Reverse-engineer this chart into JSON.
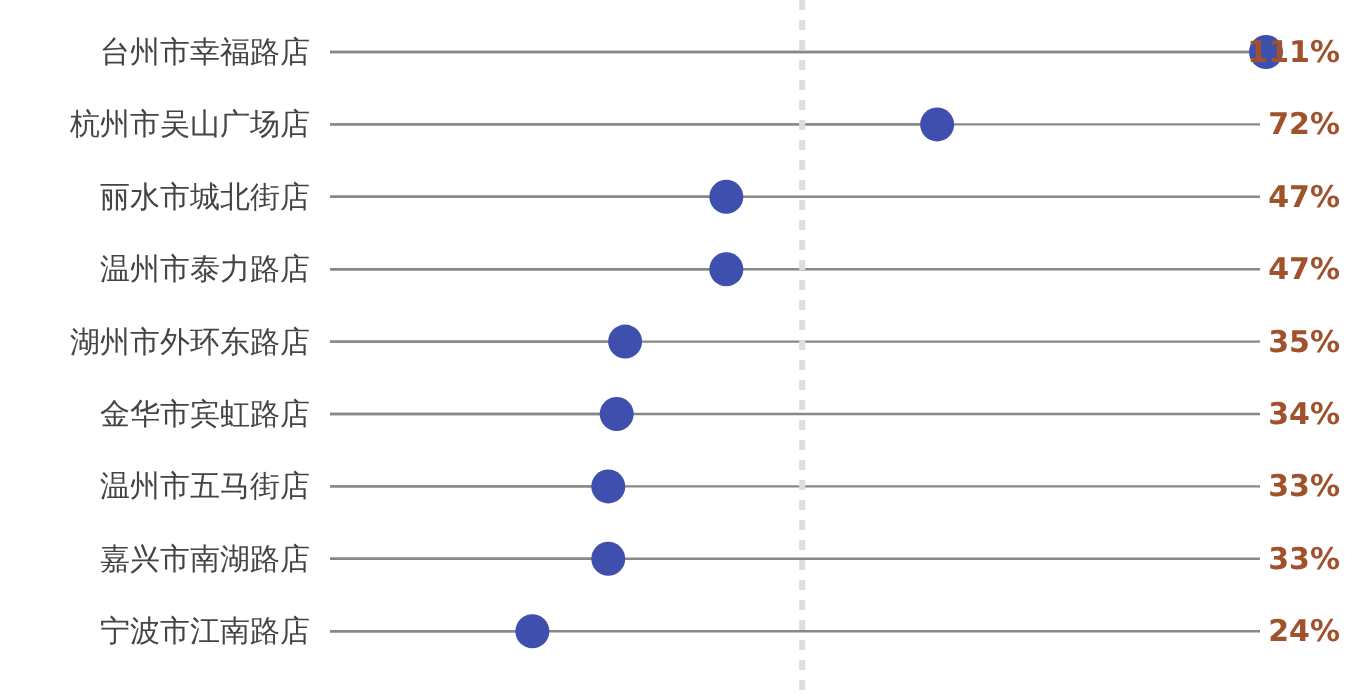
{
  "chart_data": {
    "type": "lollipop",
    "orientation": "horizontal",
    "categories": [
      "台州市幸福路店",
      "杭州市吴山广场店",
      "丽水市城北街店",
      "温州市泰力路店",
      "湖州市外环东路店",
      "金华市宾虹路店",
      "温州市五马街店",
      "嘉兴市南湖路店",
      "宁波市江南路店"
    ],
    "series": [
      {
        "color": "#3f4fae",
        "values": [
          111,
          72,
          47,
          47,
          35,
          34,
          33,
          33,
          24
        ],
        "value_labels": [
          "111%",
          "72%",
          "47%",
          "47%",
          "35%",
          "34%",
          "33%",
          "33%",
          "24%"
        ]
      }
    ],
    "ref_lines": [
      {
        "axis": "x",
        "value": 56,
        "color": "#dddddd",
        "line_style": "dashed"
      }
    ],
    "marker": "circle",
    "grid": "y"
  }
}
